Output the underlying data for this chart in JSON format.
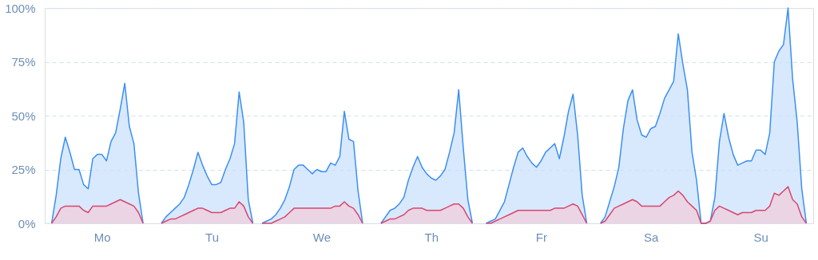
{
  "chart_data": {
    "type": "area",
    "categories": [
      null,
      null,
      null,
      null,
      null,
      null,
      null,
      null,
      null,
      null,
      null,
      null,
      "Mo",
      null,
      null,
      null,
      null,
      null,
      null,
      null,
      null,
      null,
      null,
      null,
      null,
      null,
      null,
      null,
      null,
      null,
      null,
      null,
      null,
      null,
      null,
      null,
      "Tu",
      null,
      null,
      null,
      null,
      null,
      null,
      null,
      null,
      null,
      null,
      null,
      null,
      null,
      null,
      null,
      null,
      null,
      null,
      null,
      null,
      null,
      null,
      null,
      "We",
      null,
      null,
      null,
      null,
      null,
      null,
      null,
      null,
      null,
      null,
      null,
      null,
      null,
      null,
      null,
      null,
      null,
      null,
      null,
      null,
      null,
      null,
      null,
      "Th",
      null,
      null,
      null,
      null,
      null,
      null,
      null,
      null,
      null,
      null,
      null,
      null,
      null,
      null,
      null,
      null,
      null,
      null,
      null,
      null,
      null,
      null,
      null,
      "Fr",
      null,
      null,
      null,
      null,
      null,
      null,
      null,
      null,
      null,
      null,
      null,
      null,
      null,
      null,
      null,
      null,
      null,
      null,
      null,
      null,
      null,
      null,
      null,
      "Sa",
      null,
      null,
      null,
      null,
      null,
      null,
      null,
      null,
      null,
      null,
      null,
      null,
      null,
      null,
      null,
      null,
      null,
      null,
      null,
      null,
      null,
      null,
      null,
      "Su",
      null,
      null,
      null,
      null,
      null,
      null,
      null,
      null,
      null,
      null,
      null
    ],
    "series": [
      {
        "color": "#3b8ff3",
        "values": [
          null,
          0,
          13,
          30,
          40,
          33,
          25,
          25,
          18,
          16,
          30,
          32,
          32,
          29,
          38,
          42,
          53,
          65,
          45,
          37,
          14,
          0,
          null,
          null,
          null,
          0,
          3,
          5,
          7,
          9,
          12,
          18,
          25,
          33,
          27,
          22,
          18,
          18,
          19,
          25,
          30,
          37,
          61,
          47,
          11,
          0,
          null,
          0,
          1,
          2,
          4,
          7,
          11,
          17,
          25,
          27,
          27,
          25,
          23,
          25,
          24,
          24,
          28,
          27,
          31,
          52,
          39,
          38,
          15,
          0,
          null,
          null,
          null,
          0,
          3,
          6,
          7,
          9,
          12,
          20,
          26,
          31,
          26,
          23,
          21,
          20,
          22,
          25,
          33,
          42,
          62,
          35,
          11,
          0,
          null,
          null,
          0,
          1,
          2,
          6,
          10,
          18,
          26,
          33,
          35,
          31,
          28,
          26,
          29,
          33,
          35,
          37,
          30,
          40,
          52,
          60,
          41,
          13,
          0,
          null,
          null,
          0,
          3,
          10,
          17,
          26,
          44,
          57,
          62,
          48,
          41,
          40,
          44,
          45,
          51,
          58,
          62,
          66,
          88,
          74,
          62,
          33,
          20,
          0,
          0,
          1,
          12,
          38,
          51,
          40,
          32,
          27,
          28,
          29,
          29,
          34,
          34,
          32,
          42,
          75,
          80,
          83,
          100,
          67,
          47,
          16,
          0,
          null
        ]
      },
      {
        "color": "#d9466f",
        "values": [
          null,
          0,
          3,
          7,
          8,
          8,
          8,
          8,
          6,
          5,
          8,
          8,
          8,
          8,
          9,
          10,
          11,
          10,
          9,
          8,
          5,
          0,
          null,
          null,
          null,
          0,
          1,
          2,
          2,
          3,
          4,
          5,
          6,
          7,
          7,
          6,
          5,
          5,
          5,
          6,
          7,
          7,
          10,
          8,
          3,
          0,
          null,
          0,
          0,
          0,
          1,
          2,
          3,
          5,
          7,
          7,
          7,
          7,
          7,
          7,
          7,
          7,
          7,
          8,
          8,
          10,
          8,
          7,
          4,
          0,
          null,
          null,
          null,
          0,
          1,
          2,
          2,
          3,
          4,
          6,
          7,
          7,
          7,
          6,
          6,
          6,
          6,
          7,
          8,
          9,
          9,
          7,
          3,
          0,
          null,
          null,
          0,
          0,
          1,
          2,
          3,
          4,
          5,
          6,
          6,
          6,
          6,
          6,
          6,
          6,
          6,
          7,
          7,
          7,
          8,
          9,
          8,
          4,
          0,
          null,
          null,
          0,
          1,
          4,
          7,
          8,
          9,
          10,
          11,
          10,
          8,
          8,
          8,
          8,
          8,
          10,
          12,
          13,
          15,
          13,
          10,
          8,
          6,
          0,
          0,
          1,
          6,
          8,
          7,
          6,
          5,
          4,
          5,
          5,
          5,
          6,
          6,
          6,
          8,
          14,
          13,
          15,
          17,
          11,
          9,
          3,
          0,
          null
        ]
      }
    ],
    "ylim": [
      0,
      100
    ],
    "yticks": [
      {
        "value": 0,
        "label": "0%"
      },
      {
        "value": 25,
        "label": "25%"
      },
      {
        "value": 50,
        "label": "50%"
      },
      {
        "value": 75,
        "label": "75%"
      },
      {
        "value": 100,
        "label": "100%"
      }
    ],
    "grid": "y",
    "line_style": "solid"
  }
}
